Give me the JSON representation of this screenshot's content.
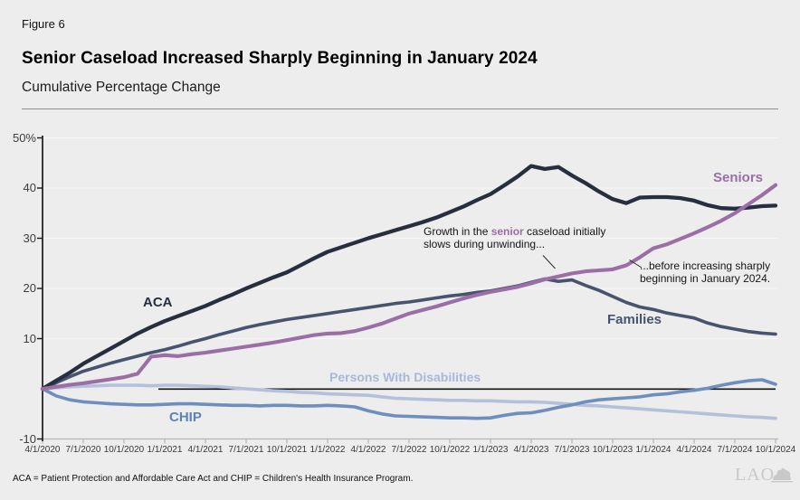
{
  "figure_label": "Figure 6",
  "title": "Senior Caseload Increased Sharply Beginning in January 2024",
  "subtitle": "Cumulative Percentage Change",
  "footnote": "ACA = Patient Protection and Affordable Care Act and CHIP = Children's Health Insurance Program.",
  "logo_text": "LAO",
  "annotations": {
    "unwinding": {
      "pre": "Growth in the ",
      "highlight": "senior",
      "post": " caseload initially slows during unwinding..."
    },
    "january": "...before increasing sharply beginning in January 2024."
  },
  "colors": {
    "background": "#ECEDEC",
    "gridline": "#f5f6f5",
    "y_axis": "#1b1b1b",
    "x_axis": "#b3b5b4",
    "zero_line": "#141414",
    "annotation_highlight": "#9b6fa5",
    "aca": "#262e3f",
    "families": "#47536f",
    "seniors": "#9b6fa5",
    "persons_with_disabilities": "#b4c0dc",
    "chip": "#6e8fbd",
    "logo": "#c8cac9"
  },
  "chart_data": {
    "type": "line",
    "title": "Senior Caseload Increased Sharply Beginning in January 2024",
    "subtitle": "Cumulative Percentage Change",
    "x_unit": "monthly from 4/1/2020 to 10/1/2024",
    "x_tick_labels": [
      "4/1/2020",
      "7/1/2020",
      "10/1/2020",
      "1/1/2021",
      "4/1/2021",
      "7/1/2021",
      "10/1/2021",
      "1/1/2022",
      "4/1/2022",
      "7/1/2022",
      "10/1/2022",
      "1/1/2023",
      "4/1/2023",
      "7/1/2023",
      "10/1/2023",
      "1/1/2024",
      "4/1/2024",
      "7/1/2024",
      "10/1/2024"
    ],
    "y_tick_labels": [
      "50%",
      "40",
      "30",
      "20",
      "10",
      "-10"
    ],
    "y_ticks": [
      50,
      40,
      30,
      20,
      10,
      -10
    ],
    "ylim": [
      -10,
      50
    ],
    "grid": true,
    "zero_line": true,
    "legend_position": "labels-on-chart",
    "series": [
      {
        "name": "ACA",
        "color": "#262e3f",
        "values": [
          0,
          1.6,
          3.2,
          5.0,
          6.5,
          8.0,
          9.5,
          11.0,
          12.3,
          13.5,
          14.5,
          15.5,
          16.5,
          17.7,
          18.8,
          20.0,
          21.1,
          22.2,
          23.2,
          24.6,
          26.0,
          27.3,
          28.2,
          29.1,
          30.0,
          30.8,
          31.6,
          32.4,
          33.2,
          34.1,
          35.2,
          36.3,
          37.6,
          38.8,
          40.5,
          42.3,
          44.4,
          43.8,
          44.2,
          42.5,
          41.0,
          39.3,
          37.8,
          37.0,
          38.1,
          38.2,
          38.2,
          38.0,
          37.5,
          36.6,
          36.0,
          35.9,
          36.1,
          36.4,
          36.5
        ]
      },
      {
        "name": "Families",
        "color": "#47536f",
        "values": [
          0,
          1.2,
          2.4,
          3.5,
          4.3,
          5.1,
          5.8,
          6.5,
          7.2,
          7.8,
          8.5,
          9.3,
          10.0,
          10.8,
          11.5,
          12.2,
          12.8,
          13.3,
          13.8,
          14.2,
          14.6,
          15.0,
          15.4,
          15.8,
          16.2,
          16.6,
          17.0,
          17.3,
          17.7,
          18.1,
          18.5,
          18.8,
          19.2,
          19.5,
          20.0,
          20.5,
          21.2,
          21.9,
          21.4,
          21.7,
          20.6,
          19.6,
          18.4,
          17.2,
          16.3,
          15.8,
          15.1,
          14.6,
          14.1,
          13.1,
          12.4,
          11.9,
          11.4,
          11.1,
          10.9
        ]
      },
      {
        "name": "Seniors",
        "color": "#9b6fa5",
        "values": [
          0,
          0.4,
          0.8,
          1.1,
          1.5,
          1.9,
          2.3,
          3.0,
          6.4,
          6.7,
          6.5,
          6.9,
          7.2,
          7.6,
          8.0,
          8.4,
          8.8,
          9.2,
          9.7,
          10.2,
          10.7,
          11.0,
          11.1,
          11.5,
          12.2,
          13.0,
          14.0,
          15.0,
          15.7,
          16.4,
          17.2,
          18.0,
          18.7,
          19.3,
          19.8,
          20.3,
          21.0,
          21.8,
          22.4,
          23.0,
          23.4,
          23.6,
          23.8,
          24.6,
          26.2,
          28.0,
          28.8,
          29.9,
          31.0,
          32.2,
          33.5,
          35.0,
          36.8,
          38.6,
          40.6
        ]
      },
      {
        "name": "Persons With Disabilities",
        "color": "#b4c0dc",
        "values": [
          0,
          0.2,
          0.4,
          0.5,
          0.6,
          0.7,
          0.7,
          0.7,
          0.6,
          0.7,
          0.7,
          0.6,
          0.5,
          0.4,
          0.2,
          0.0,
          -0.2,
          -0.4,
          -0.5,
          -0.7,
          -0.8,
          -1.0,
          -1.1,
          -1.2,
          -1.3,
          -1.6,
          -1.9,
          -2.0,
          -2.1,
          -2.2,
          -2.3,
          -2.3,
          -2.4,
          -2.4,
          -2.5,
          -2.6,
          -2.6,
          -2.7,
          -2.9,
          -3.1,
          -3.3,
          -3.4,
          -3.6,
          -3.8,
          -4.0,
          -4.2,
          -4.4,
          -4.6,
          -4.8,
          -5.0,
          -5.2,
          -5.4,
          -5.6,
          -5.7,
          -5.9
        ]
      },
      {
        "name": "CHIP",
        "color": "#6e8fbd",
        "values": [
          0,
          -1.4,
          -2.2,
          -2.6,
          -2.8,
          -3.0,
          -3.1,
          -3.2,
          -3.2,
          -3.1,
          -3.0,
          -3.0,
          -3.1,
          -3.2,
          -3.3,
          -3.3,
          -3.4,
          -3.3,
          -3.3,
          -3.4,
          -3.4,
          -3.3,
          -3.4,
          -3.6,
          -4.4,
          -5.0,
          -5.4,
          -5.5,
          -5.6,
          -5.7,
          -5.8,
          -5.8,
          -5.9,
          -5.8,
          -5.3,
          -4.9,
          -4.8,
          -4.3,
          -3.7,
          -3.2,
          -2.6,
          -2.2,
          -2.0,
          -1.8,
          -1.6,
          -1.2,
          -1.0,
          -0.6,
          -0.3,
          0.1,
          0.7,
          1.2,
          1.6,
          1.8,
          0.9
        ]
      }
    ]
  }
}
